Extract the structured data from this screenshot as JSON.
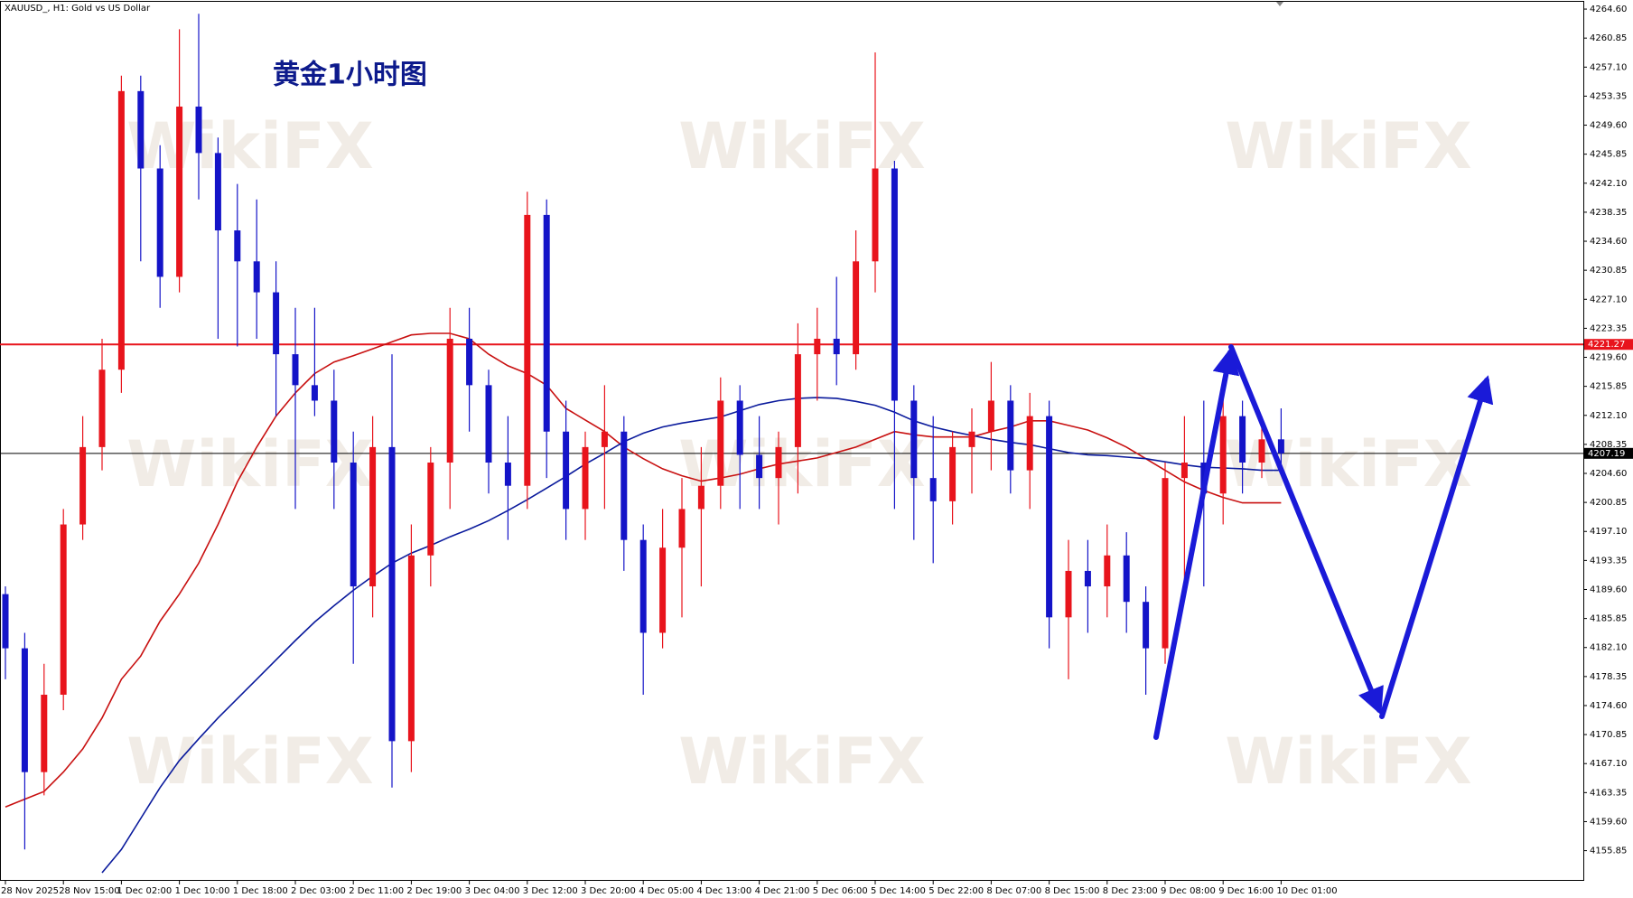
{
  "chart_data": {
    "type": "candlestick",
    "title": "XAUUSD_, H1:  Gold vs US Dollar",
    "annotation": "黄金1小时图",
    "watermark": "WikiFX",
    "up_color": "#e8141c",
    "down_color": "#1414c8",
    "categories": [
      "28 Nov 2025",
      null,
      null,
      "28 Nov 15:00",
      null,
      null,
      "1 Dec 02:00",
      null,
      null,
      "1 Dec 10:00",
      null,
      null,
      "1 Dec 18:00",
      null,
      null,
      "2 Dec 03:00",
      null,
      null,
      "2 Dec 11:00",
      null,
      null,
      "2 Dec 19:00",
      null,
      null,
      "3 Dec 04:00",
      null,
      null,
      "3 Dec 12:00",
      null,
      null,
      "3 Dec 20:00",
      null,
      null,
      "4 Dec 05:00",
      null,
      null,
      "4 Dec 13:00",
      null,
      null,
      "4 Dec 21:00",
      null,
      null,
      "5 Dec 06:00",
      null,
      null,
      "5 Dec 14:00",
      null,
      null,
      "5 Dec 22:00",
      null,
      null,
      "8 Dec 07:00",
      null,
      null,
      "8 Dec 15:00",
      null,
      null,
      "8 Dec 23:00",
      null,
      null,
      "9 Dec 08:00",
      null,
      null,
      "9 Dec 16:00",
      null,
      null,
      "10 Dec 01:00"
    ],
    "open": [
      4189,
      4182,
      4166,
      4176,
      4198,
      4208,
      4218,
      4254,
      4244,
      4230,
      4252,
      4246,
      4236,
      4232,
      4228,
      4220,
      4216,
      4214,
      4206,
      4190,
      4208,
      4170,
      4194,
      4206,
      4222,
      4216,
      4206,
      4203,
      4238,
      4210,
      4200,
      4208,
      4210,
      4196,
      4184,
      4195,
      4200,
      4203,
      4214,
      4207,
      4204,
      4208,
      4220,
      4222,
      4220,
      4232,
      4244,
      4214,
      4204,
      4201,
      4208,
      4210,
      4214,
      4205,
      4212,
      4186,
      4192,
      4190,
      4194,
      4188,
      4182,
      4204,
      4206,
      4202,
      4212,
      4206,
      4209
    ],
    "high": [
      4190,
      4184,
      4180,
      4200,
      4212,
      4222,
      4256,
      4256,
      4247,
      4262,
      4264,
      4248,
      4242,
      4240,
      4232,
      4226,
      4226,
      4218,
      4210,
      4212,
      4220,
      4198,
      4208,
      4226,
      4226,
      4218,
      4212,
      4241,
      4240,
      4214,
      4210,
      4216,
      4212,
      4198,
      4200,
      4204,
      4208,
      4217,
      4216,
      4212,
      4210,
      4224,
      4226,
      4230,
      4236,
      4259,
      4245,
      4216,
      4212,
      4210,
      4213,
      4219,
      4216,
      4215,
      4214,
      4196,
      4196,
      4198,
      4197,
      4190,
      4206,
      4212,
      4214,
      4216,
      4214,
      4212,
      4213
    ],
    "low": [
      4178,
      4156,
      4163,
      4174,
      4196,
      4205,
      4215,
      4232,
      4226,
      4228,
      4240,
      4222,
      4221,
      4222,
      4212,
      4200,
      4212,
      4200,
      4180,
      4186,
      4164,
      4166,
      4190,
      4200,
      4210,
      4202,
      4196,
      4200,
      4204,
      4196,
      4196,
      4200,
      4192,
      4176,
      4182,
      4186,
      4190,
      4200,
      4200,
      4200,
      4198,
      4202,
      4214,
      4216,
      4218,
      4228,
      4200,
      4196,
      4193,
      4198,
      4202,
      4205,
      4202,
      4200,
      4182,
      4178,
      4184,
      4186,
      4184,
      4176,
      4180,
      4190,
      4190,
      4198,
      4202,
      4204,
      4205
    ],
    "close": [
      4182,
      4166,
      4176,
      4198,
      4208,
      4218,
      4254,
      4244,
      4230,
      4252,
      4246,
      4236,
      4232,
      4228,
      4220,
      4216,
      4214,
      4206,
      4190,
      4208,
      4170,
      4194,
      4206,
      4222,
      4216,
      4206,
      4203,
      4238,
      4210,
      4200,
      4208,
      4210,
      4196,
      4184,
      4195,
      4200,
      4203,
      4214,
      4207,
      4204,
      4208,
      4220,
      4222,
      4220,
      4232,
      4244,
      4214,
      4204,
      4201,
      4208,
      4210,
      4214,
      4205,
      4212,
      4186,
      4192,
      4190,
      4194,
      4188,
      4182,
      4204,
      4206,
      4202,
      4212,
      4206,
      4209,
      4207.19
    ],
    "ma": [
      {
        "color": "#c81010",
        "values": [
          4161.5,
          4162.5,
          4163.5,
          4166,
          4169,
          4173,
          4178,
          4181,
          4185.5,
          4189,
          4193,
          4198,
          4203.5,
          4208,
          4212,
          4215,
          4217.5,
          4219,
          4219.8,
          4220.7,
          4221.6,
          4222.5,
          4222.7,
          4222.7,
          4222,
          4220,
          4218.5,
          4217.5,
          4216,
          4213,
          4211.5,
          4210,
          4208,
          4206.5,
          4205.2,
          4204.3,
          4203.6,
          4204,
          4204.5,
          4205.2,
          4205.8,
          4206.2,
          4206.6,
          4207.3,
          4208,
          4209,
          4210,
          4209.6,
          4209.3,
          4209.3,
          4209.3,
          4210,
          4210.6,
          4211.4,
          4211.4,
          4210.8,
          4210.2,
          4209.2,
          4208,
          4206.5,
          4205,
          4203.5,
          4202.4,
          4201.5,
          4200.8,
          4200.8,
          4200.8
        ]
      },
      {
        "color": "#0a1a9c",
        "values": [
          null,
          null,
          null,
          null,
          null,
          4153,
          4156,
          4160,
          4164,
          4167.5,
          4170.3,
          4173,
          4175.5,
          4178,
          4180.5,
          4183,
          4185.4,
          4187.5,
          4189.5,
          4191.3,
          4193,
          4194.3,
          4195.3,
          4196.4,
          4197.4,
          4198.5,
          4199.8,
          4201.2,
          4202.7,
          4204.2,
          4205.8,
          4207.2,
          4208.7,
          4209.8,
          4210.6,
          4211.1,
          4211.5,
          4211.9,
          4212.7,
          4213.5,
          4214,
          4214.3,
          4214.4,
          4214.3,
          4213.9,
          4213.4,
          4212.5,
          4211.4,
          4210.6,
          4210,
          4209.5,
          4209,
          4208.6,
          4208.3,
          4207.8,
          4207.3,
          4207,
          4206.9,
          4206.7,
          4206.5,
          4206.1,
          4205.7,
          4205.4,
          4205.3,
          4205.2,
          4205,
          4205
        ]
      }
    ],
    "hlines": [
      {
        "value": 4221.27,
        "color": "#e8141c"
      },
      {
        "value": 4207.19,
        "color": "#000000"
      }
    ],
    "ylim": [
      4151.95,
      4265.54
    ],
    "yticks": [
      {
        "value": 4264.6,
        "label": "4264.60"
      },
      4260.85,
      {
        "value": 4257.1,
        "label": "4257.10"
      },
      4253.35,
      {
        "value": 4249.6,
        "label": "4249.60"
      },
      4245.85,
      {
        "value": 4242.1,
        "label": "4242.10"
      },
      4238.35,
      {
        "value": 4234.6,
        "label": "4234.60"
      },
      4230.85,
      {
        "value": 4227.1,
        "label": "4227.10"
      },
      4223.35,
      {
        "value": 4219.6,
        "label": "4219.60"
      },
      4215.85,
      {
        "value": 4212.1,
        "label": "4212.10"
      },
      4208.35,
      {
        "value": 4204.6,
        "label": "4204.60"
      },
      4200.85,
      {
        "value": 4197.1,
        "label": "4197.10"
      },
      4193.35,
      {
        "value": 4189.6,
        "label": "4189.60"
      },
      4185.85,
      {
        "value": 4182.1,
        "label": "4182.10"
      },
      4178.35,
      {
        "value": 4174.6,
        "label": "4174.60"
      },
      4170.85,
      {
        "value": 4167.1,
        "label": "4167.10"
      },
      4163.35,
      {
        "value": 4159.6,
        "label": "4159.60"
      },
      4155.85
    ]
  }
}
